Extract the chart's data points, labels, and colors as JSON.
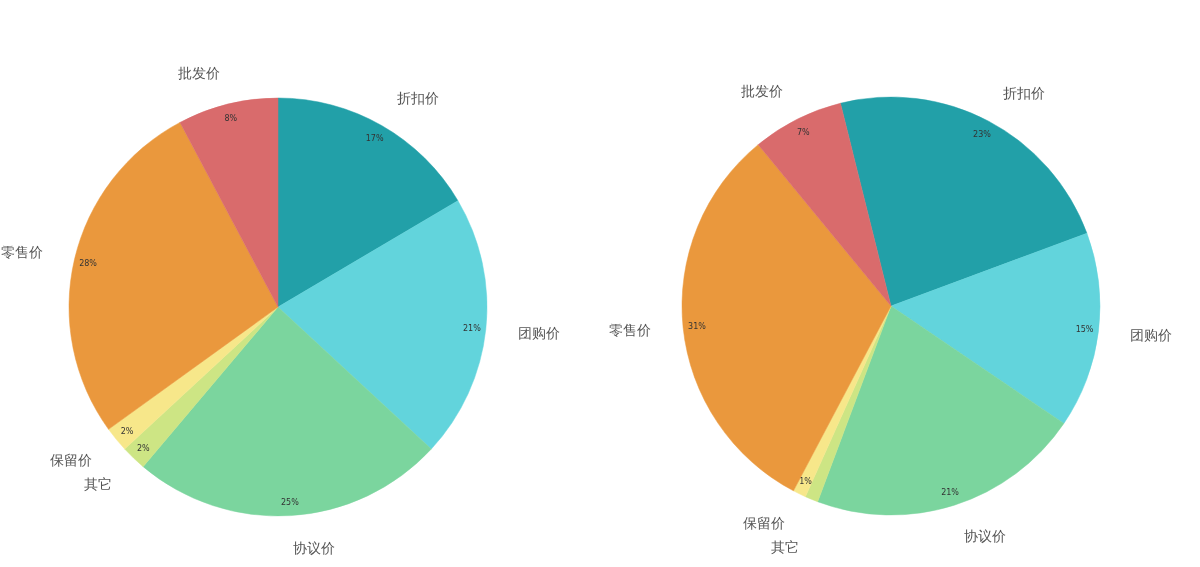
{
  "chart_data": [
    {
      "type": "pie",
      "categories": [
        "折扣价",
        "团购价",
        "协议价",
        "其它",
        "保留价",
        "零售价",
        "批发价"
      ],
      "values": [
        17,
        21,
        25,
        2,
        2,
        28,
        8
      ],
      "value_labels": [
        "17%",
        "21%",
        "25%",
        "2%",
        "2%",
        "28%",
        "8%"
      ],
      "colors": [
        "#22a0a8",
        "#62d4dc",
        "#7bd59e",
        "#cde584",
        "#f7e78a",
        "#ea983d",
        "#d96b6c"
      ]
    },
    {
      "type": "pie",
      "categories": [
        "折扣价",
        "团购价",
        "协议价",
        "其它",
        "保留价",
        "零售价",
        "批发价"
      ],
      "values": [
        23,
        15,
        21,
        1,
        1,
        31,
        7
      ],
      "value_labels": [
        "23%",
        "15%",
        "21%",
        null,
        "1%",
        "31%",
        "7%"
      ],
      "colors": [
        "#22a0a8",
        "#62d4dc",
        "#7bd59e",
        "#cde584",
        "#f7e78a",
        "#ea983d",
        "#d96b6c"
      ]
    }
  ]
}
